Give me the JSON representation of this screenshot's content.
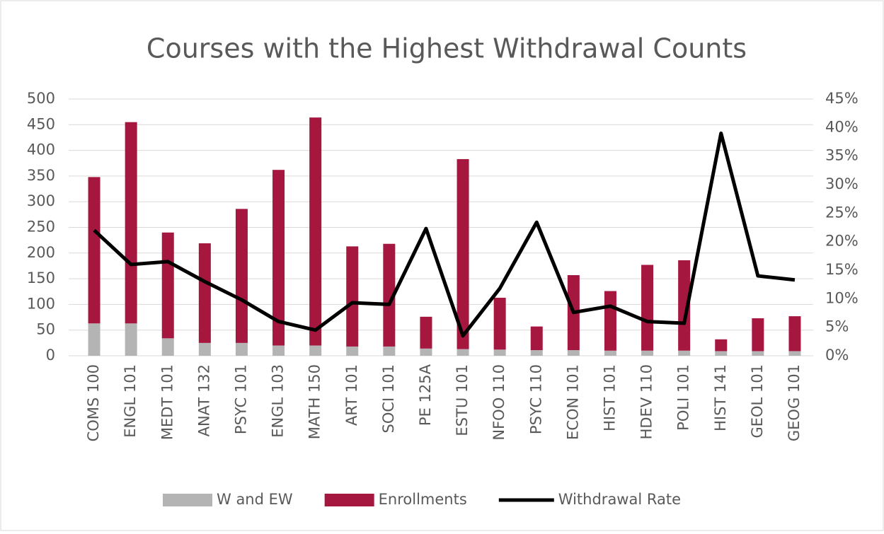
{
  "chart_data": {
    "type": "bar",
    "title": "Courses with the Highest Withdrawal Counts",
    "categories": [
      "COMS 100",
      "ENGL 101",
      "MEDT 101",
      "ANAT 132",
      "PSYC 101",
      "ENGL 103",
      "MATH 150",
      "ART 101",
      "SOCI 101",
      "PE 125A",
      "ESTU 101",
      "NFOO 110",
      "PSYC 110",
      "ECON 101",
      "HIST 101",
      "HDEV 110",
      "POLI 101",
      "HIST 141",
      "GEOL 101",
      "GEOG 101"
    ],
    "series": [
      {
        "name": "W and EW",
        "color": "#b4b4b4",
        "values": [
          63,
          63,
          34,
          25,
          25,
          20,
          20,
          18,
          18,
          14,
          13,
          12,
          11,
          11,
          10,
          10,
          10,
          9,
          9,
          9
        ]
      },
      {
        "name": "Enrollments",
        "color": "#a6173f",
        "values": [
          285,
          392,
          206,
          194,
          261,
          342,
          444,
          195,
          200,
          62,
          370,
          101,
          46,
          146,
          116,
          167,
          176,
          23,
          64,
          68
        ]
      },
      {
        "name": "Withdrawal Rate",
        "color": "#000000",
        "axis": "y2",
        "values": [
          22,
          16,
          16.5,
          13,
          9.8,
          6,
          4.5,
          9.3,
          9,
          22.3,
          3.5,
          11.8,
          23.4,
          7.6,
          8.7,
          6,
          5.7,
          39,
          14,
          13.3
        ]
      }
    ],
    "ylim": [
      0,
      500
    ],
    "yticks": [
      0,
      50,
      100,
      150,
      200,
      250,
      300,
      350,
      400,
      450,
      500
    ],
    "y2lim": [
      0,
      45
    ],
    "y2ticks": [
      {
        "value": 0,
        "label": "0%"
      },
      {
        "value": 5,
        "label": "5%"
      },
      {
        "value": 10,
        "label": "10%"
      },
      {
        "value": 15,
        "label": "15%"
      },
      {
        "value": 20,
        "label": "20%"
      },
      {
        "value": 25,
        "label": "25%"
      },
      {
        "value": 30,
        "label": "30%"
      },
      {
        "value": 35,
        "label": "35%"
      },
      {
        "value": 40,
        "label": "40%"
      },
      {
        "value": 45,
        "label": "45%"
      }
    ],
    "grid": true,
    "legend": "bottom"
  }
}
